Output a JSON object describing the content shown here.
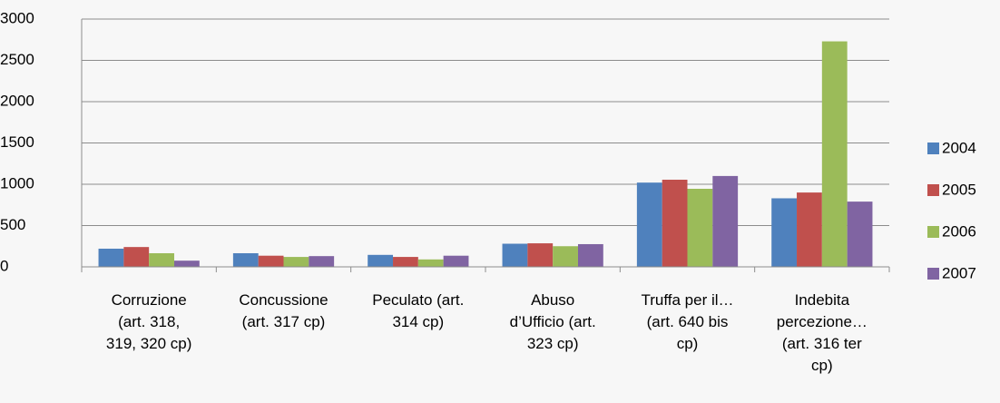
{
  "chart_data": {
    "type": "bar",
    "categories": [
      "Corruzione\n(art. 318,\n319, 320 cp)",
      "Concussione\n(art. 317 cp)",
      "Peculato (art.\n314 cp)",
      "Abuso\nd’Ufficio (art.\n323 cp)",
      "Truffa per il…\n(art. 640 bis\ncp)",
      "Indebita\npercezione…\n(art. 316 ter\ncp)"
    ],
    "series": [
      {
        "name": "2004",
        "color": "#4f81bd",
        "values": [
          220,
          165,
          145,
          280,
          1020,
          830
        ]
      },
      {
        "name": "2005",
        "color": "#c0504d",
        "values": [
          240,
          135,
          120,
          285,
          1055,
          900
        ]
      },
      {
        "name": "2006",
        "color": "#9bbb59",
        "values": [
          165,
          120,
          90,
          250,
          945,
          2730
        ]
      },
      {
        "name": "2007",
        "color": "#8064a2",
        "values": [
          75,
          130,
          135,
          275,
          1100,
          790
        ]
      }
    ],
    "ylim": [
      0,
      3000
    ],
    "yticks": [
      0,
      500,
      1000,
      1500,
      2000,
      2500,
      3000
    ],
    "grid": true,
    "legend": "right"
  }
}
